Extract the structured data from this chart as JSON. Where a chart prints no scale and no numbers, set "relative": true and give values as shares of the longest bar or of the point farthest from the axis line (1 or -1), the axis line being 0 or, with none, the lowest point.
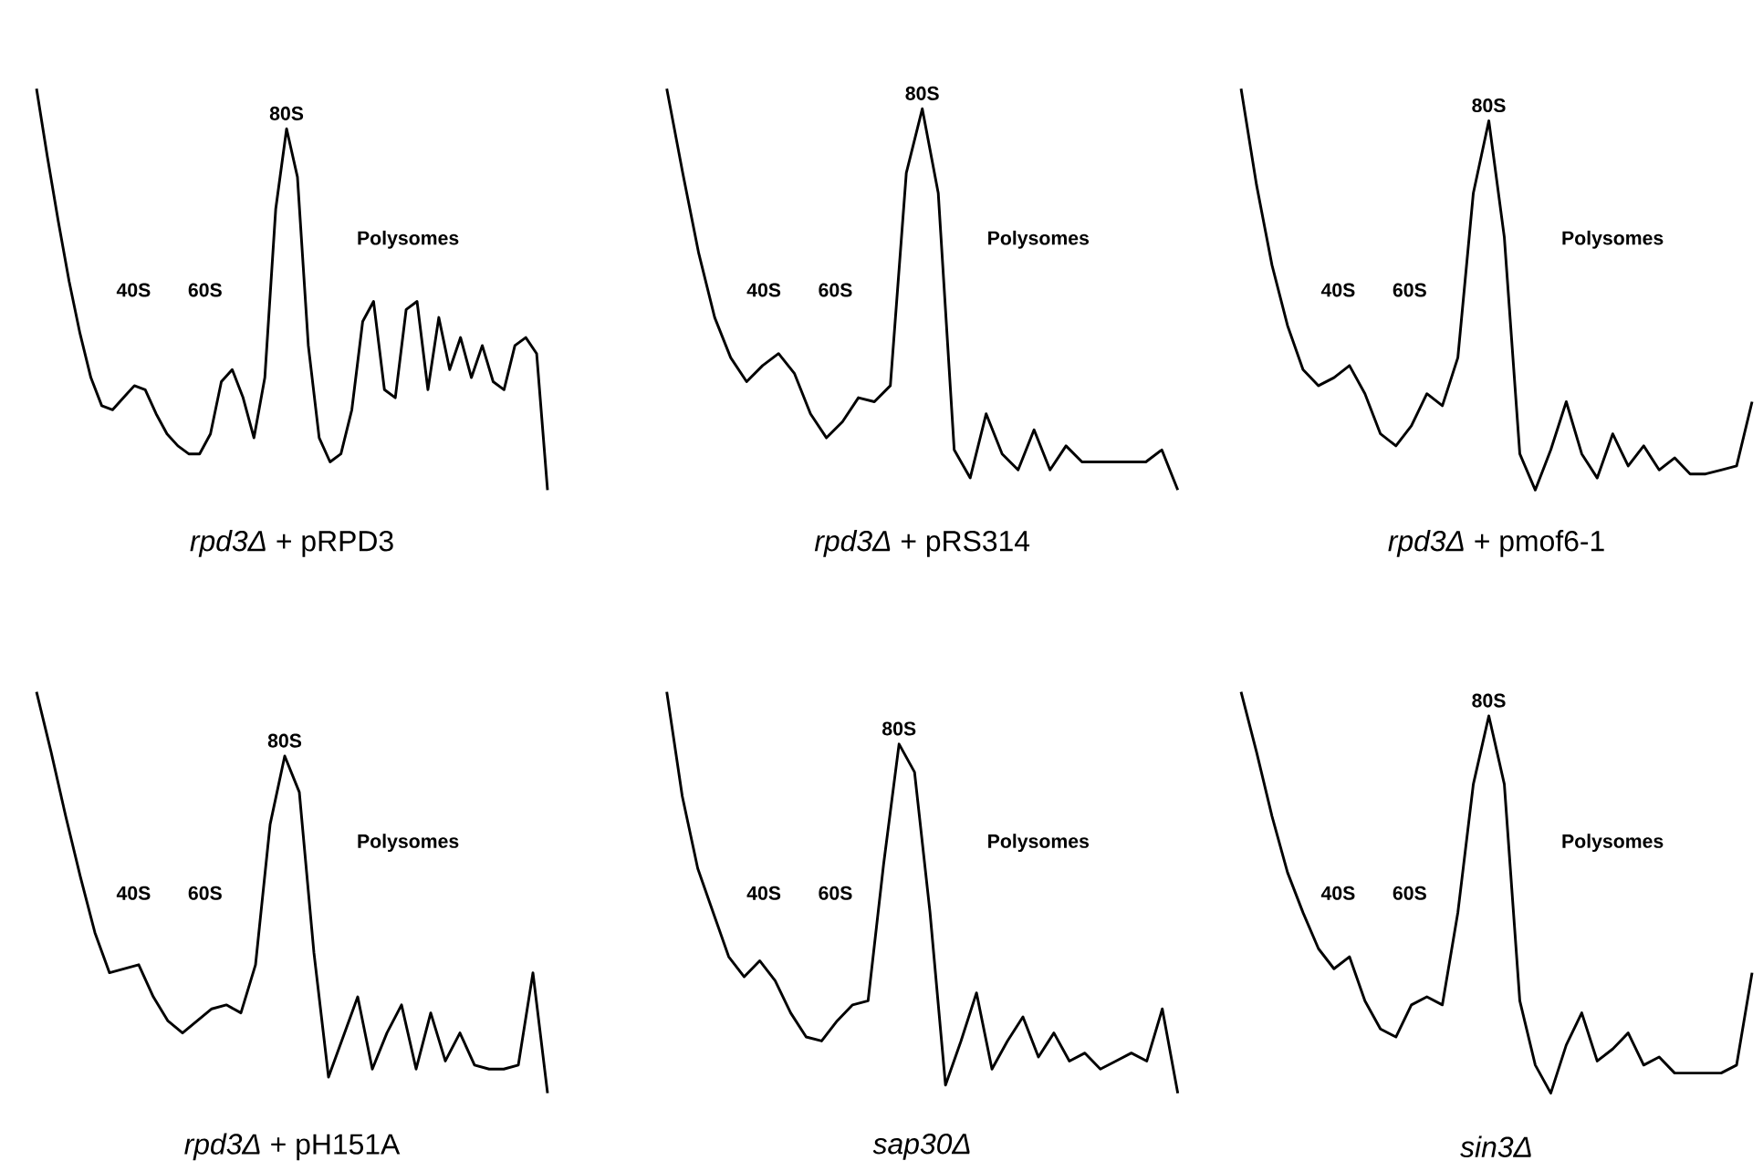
{
  "chart_data": [
    {
      "type": "line",
      "relative": true,
      "title": "*rpd3Δ* + pRPD3",
      "color": "#000000",
      "annotations": [
        "40S",
        "60S",
        "80S",
        "Polysomes"
      ],
      "categories": [
        null,
        null,
        null,
        null,
        null,
        null,
        null,
        null,
        null,
        null,
        null,
        null,
        null,
        null,
        null,
        null,
        null,
        null,
        null,
        null,
        null,
        null,
        null,
        null,
        null,
        null,
        null,
        null,
        null,
        null,
        null,
        null,
        null,
        null,
        null,
        null,
        null,
        null,
        null,
        null,
        null,
        null,
        null,
        null,
        null,
        null,
        null,
        null
      ],
      "values": [
        1.0,
        0.83,
        0.67,
        0.52,
        0.39,
        0.28,
        0.21,
        0.2,
        0.23,
        0.26,
        0.25,
        0.19,
        0.14,
        0.11,
        0.09,
        0.09,
        0.14,
        0.27,
        0.3,
        0.23,
        0.13,
        0.28,
        0.7,
        0.9,
        0.78,
        0.36,
        0.13,
        0.07,
        0.09,
        0.2,
        0.42,
        0.47,
        0.25,
        0.23,
        0.45,
        0.47,
        0.25,
        0.43,
        0.3,
        0.38,
        0.28,
        0.36,
        0.27,
        0.25,
        0.36,
        0.38,
        0.34,
        0
      ]
    },
    {
      "type": "line",
      "relative": true,
      "title": "*rpd3Δ* + pRS314",
      "color": "#000000",
      "annotations": [
        "40S",
        "60S",
        "80S",
        "Polysomes"
      ],
      "categories": [
        null,
        null,
        null,
        null,
        null,
        null,
        null,
        null,
        null,
        null,
        null,
        null,
        null,
        null,
        null,
        null,
        null,
        null,
        null,
        null,
        null,
        null,
        null,
        null,
        null,
        null,
        null,
        null,
        null,
        null,
        null,
        null,
        null
      ],
      "values": [
        1.0,
        0.79,
        0.59,
        0.43,
        0.33,
        0.27,
        0.31,
        0.34,
        0.29,
        0.19,
        0.13,
        0.17,
        0.23,
        0.22,
        0.26,
        0.79,
        0.95,
        0.74,
        0.1,
        0.03,
        0.19,
        0.09,
        0.05,
        0.15,
        0.05,
        0.11,
        0.07,
        0.07,
        0.07,
        0.07,
        0.07,
        0.1,
        0
      ]
    },
    {
      "type": "line",
      "relative": true,
      "title": "*rpd3Δ* + pmof6-1",
      "color": "#000000",
      "annotations": [
        "40S",
        "60S",
        "80S",
        "Polysomes"
      ],
      "categories": [
        null,
        null,
        null,
        null,
        null,
        null,
        null,
        null,
        null,
        null,
        null,
        null,
        null,
        null,
        null,
        null,
        null,
        null,
        null,
        null,
        null,
        null,
        null,
        null,
        null,
        null,
        null,
        null,
        null,
        null,
        null,
        null,
        null,
        null
      ],
      "values": [
        1.0,
        0.76,
        0.56,
        0.41,
        0.3,
        0.26,
        0.28,
        0.31,
        0.24,
        0.14,
        0.11,
        0.16,
        0.24,
        0.21,
        0.33,
        0.74,
        0.92,
        0.63,
        0.09,
        0,
        0.1,
        0.22,
        0.09,
        0.03,
        0.14,
        0.06,
        0.11,
        0.05,
        0.08,
        0.04,
        0.04,
        0.05,
        0.06,
        0.22
      ]
    },
    {
      "type": "line",
      "relative": true,
      "title": "*rpd3Δ* + pH151A",
      "color": "#000000",
      "annotations": [
        "40S",
        "60S",
        "80S",
        "Polysomes"
      ],
      "categories": [
        null,
        null,
        null,
        null,
        null,
        null,
        null,
        null,
        null,
        null,
        null,
        null,
        null,
        null,
        null,
        null,
        null,
        null,
        null,
        null,
        null,
        null,
        null,
        null,
        null,
        null,
        null,
        null,
        null,
        null,
        null,
        null,
        null,
        null,
        null,
        null
      ],
      "values": [
        1.0,
        0.85,
        0.69,
        0.54,
        0.4,
        0.3,
        0.31,
        0.32,
        0.24,
        0.18,
        0.15,
        0.18,
        0.21,
        0.22,
        0.2,
        0.32,
        0.67,
        0.84,
        0.75,
        0.35,
        0.04,
        0.14,
        0.24,
        0.06,
        0.15,
        0.22,
        0.06,
        0.2,
        0.08,
        0.15,
        0.07,
        0.06,
        0.06,
        0.07,
        0.3,
        0
      ]
    },
    {
      "type": "line",
      "relative": true,
      "title": "*sap30Δ*",
      "color": "#000000",
      "annotations": [
        "40S",
        "60S",
        "80S",
        "Polysomes"
      ],
      "categories": [
        null,
        null,
        null,
        null,
        null,
        null,
        null,
        null,
        null,
        null,
        null,
        null,
        null,
        null,
        null,
        null,
        null,
        null,
        null,
        null,
        null,
        null,
        null,
        null,
        null,
        null,
        null,
        null,
        null,
        null,
        null,
        null,
        null,
        null
      ],
      "values": [
        1.0,
        0.74,
        0.56,
        0.45,
        0.34,
        0.29,
        0.33,
        0.28,
        0.2,
        0.14,
        0.13,
        0.18,
        0.22,
        0.23,
        0.57,
        0.87,
        0.8,
        0.45,
        0.02,
        0.13,
        0.25,
        0.06,
        0.13,
        0.19,
        0.09,
        0.15,
        0.08,
        0.1,
        0.06,
        0.08,
        0.1,
        0.08,
        0.21,
        0
      ]
    },
    {
      "type": "line",
      "relative": true,
      "title": "*sin3Δ*",
      "color": "#000000",
      "annotations": [
        "40S",
        "60S",
        "80S",
        "Polysomes"
      ],
      "categories": [
        null,
        null,
        null,
        null,
        null,
        null,
        null,
        null,
        null,
        null,
        null,
        null,
        null,
        null,
        null,
        null,
        null,
        null,
        null,
        null,
        null,
        null,
        null,
        null,
        null,
        null,
        null,
        null,
        null,
        null,
        null,
        null,
        null,
        null
      ],
      "values": [
        1.0,
        0.85,
        0.69,
        0.55,
        0.45,
        0.36,
        0.31,
        0.34,
        0.23,
        0.16,
        0.14,
        0.22,
        0.24,
        0.22,
        0.45,
        0.77,
        0.94,
        0.77,
        0.23,
        0.07,
        0,
        0.12,
        0.2,
        0.08,
        0.11,
        0.15,
        0.07,
        0.09,
        0.05,
        0.05,
        0.05,
        0.05,
        0.07,
        0.3
      ]
    }
  ]
}
